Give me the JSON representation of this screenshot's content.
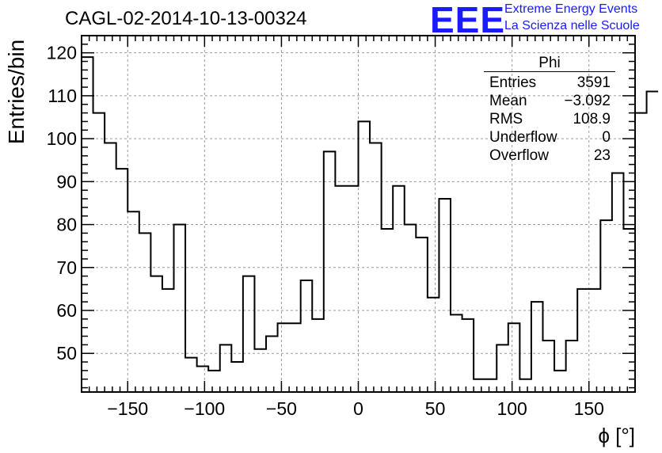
{
  "header": {
    "title": "CAGL-02-2014-10-13-00324",
    "logo_text": "EEE",
    "logo_line1": "Extreme Energy Events",
    "logo_line2": "La Scienza nelle Scuole",
    "logo_color": "#1a1aff"
  },
  "stats_box": {
    "title": "Phi",
    "rows": [
      {
        "label": "Entries",
        "value": "3591"
      },
      {
        "label": "Mean",
        "value": "−3.092"
      },
      {
        "label": "RMS",
        "value": "108.9"
      },
      {
        "label": "Underflow",
        "value": "0"
      },
      {
        "label": "Overflow",
        "value": "23"
      }
    ]
  },
  "chart_data": {
    "type": "histogram",
    "title": "CAGL-02-2014-10-13-00324",
    "xlabel": "ϕ [°]",
    "ylabel": "Entries/bin",
    "xlim": [
      -180,
      180
    ],
    "ylim": [
      41,
      124
    ],
    "x_ticks": [
      -150,
      -100,
      -50,
      0,
      50,
      100,
      150
    ],
    "x_tick_labels": [
      "−150",
      "−100",
      "−50",
      "0",
      "50",
      "100",
      "150"
    ],
    "y_ticks": [
      50,
      60,
      70,
      80,
      90,
      100,
      110,
      120
    ],
    "y_tick_labels": [
      "50",
      "60",
      "70",
      "80",
      "90",
      "100",
      "110",
      "120"
    ],
    "grid": true,
    "bin_edges_start": -180,
    "bin_width": 7.5,
    "values": [
      119,
      106,
      99,
      93,
      83,
      78,
      68,
      65,
      80,
      49,
      47,
      46,
      52,
      48,
      68,
      51,
      54,
      57,
      57,
      67,
      58,
      97,
      89,
      89,
      104,
      99,
      79,
      89,
      80,
      77,
      63,
      86,
      59,
      58,
      44,
      44,
      52,
      57,
      44,
      62,
      53,
      46,
      53,
      65,
      65,
      81,
      92,
      79,
      106,
      111
    ],
    "line_color": "#000000"
  }
}
